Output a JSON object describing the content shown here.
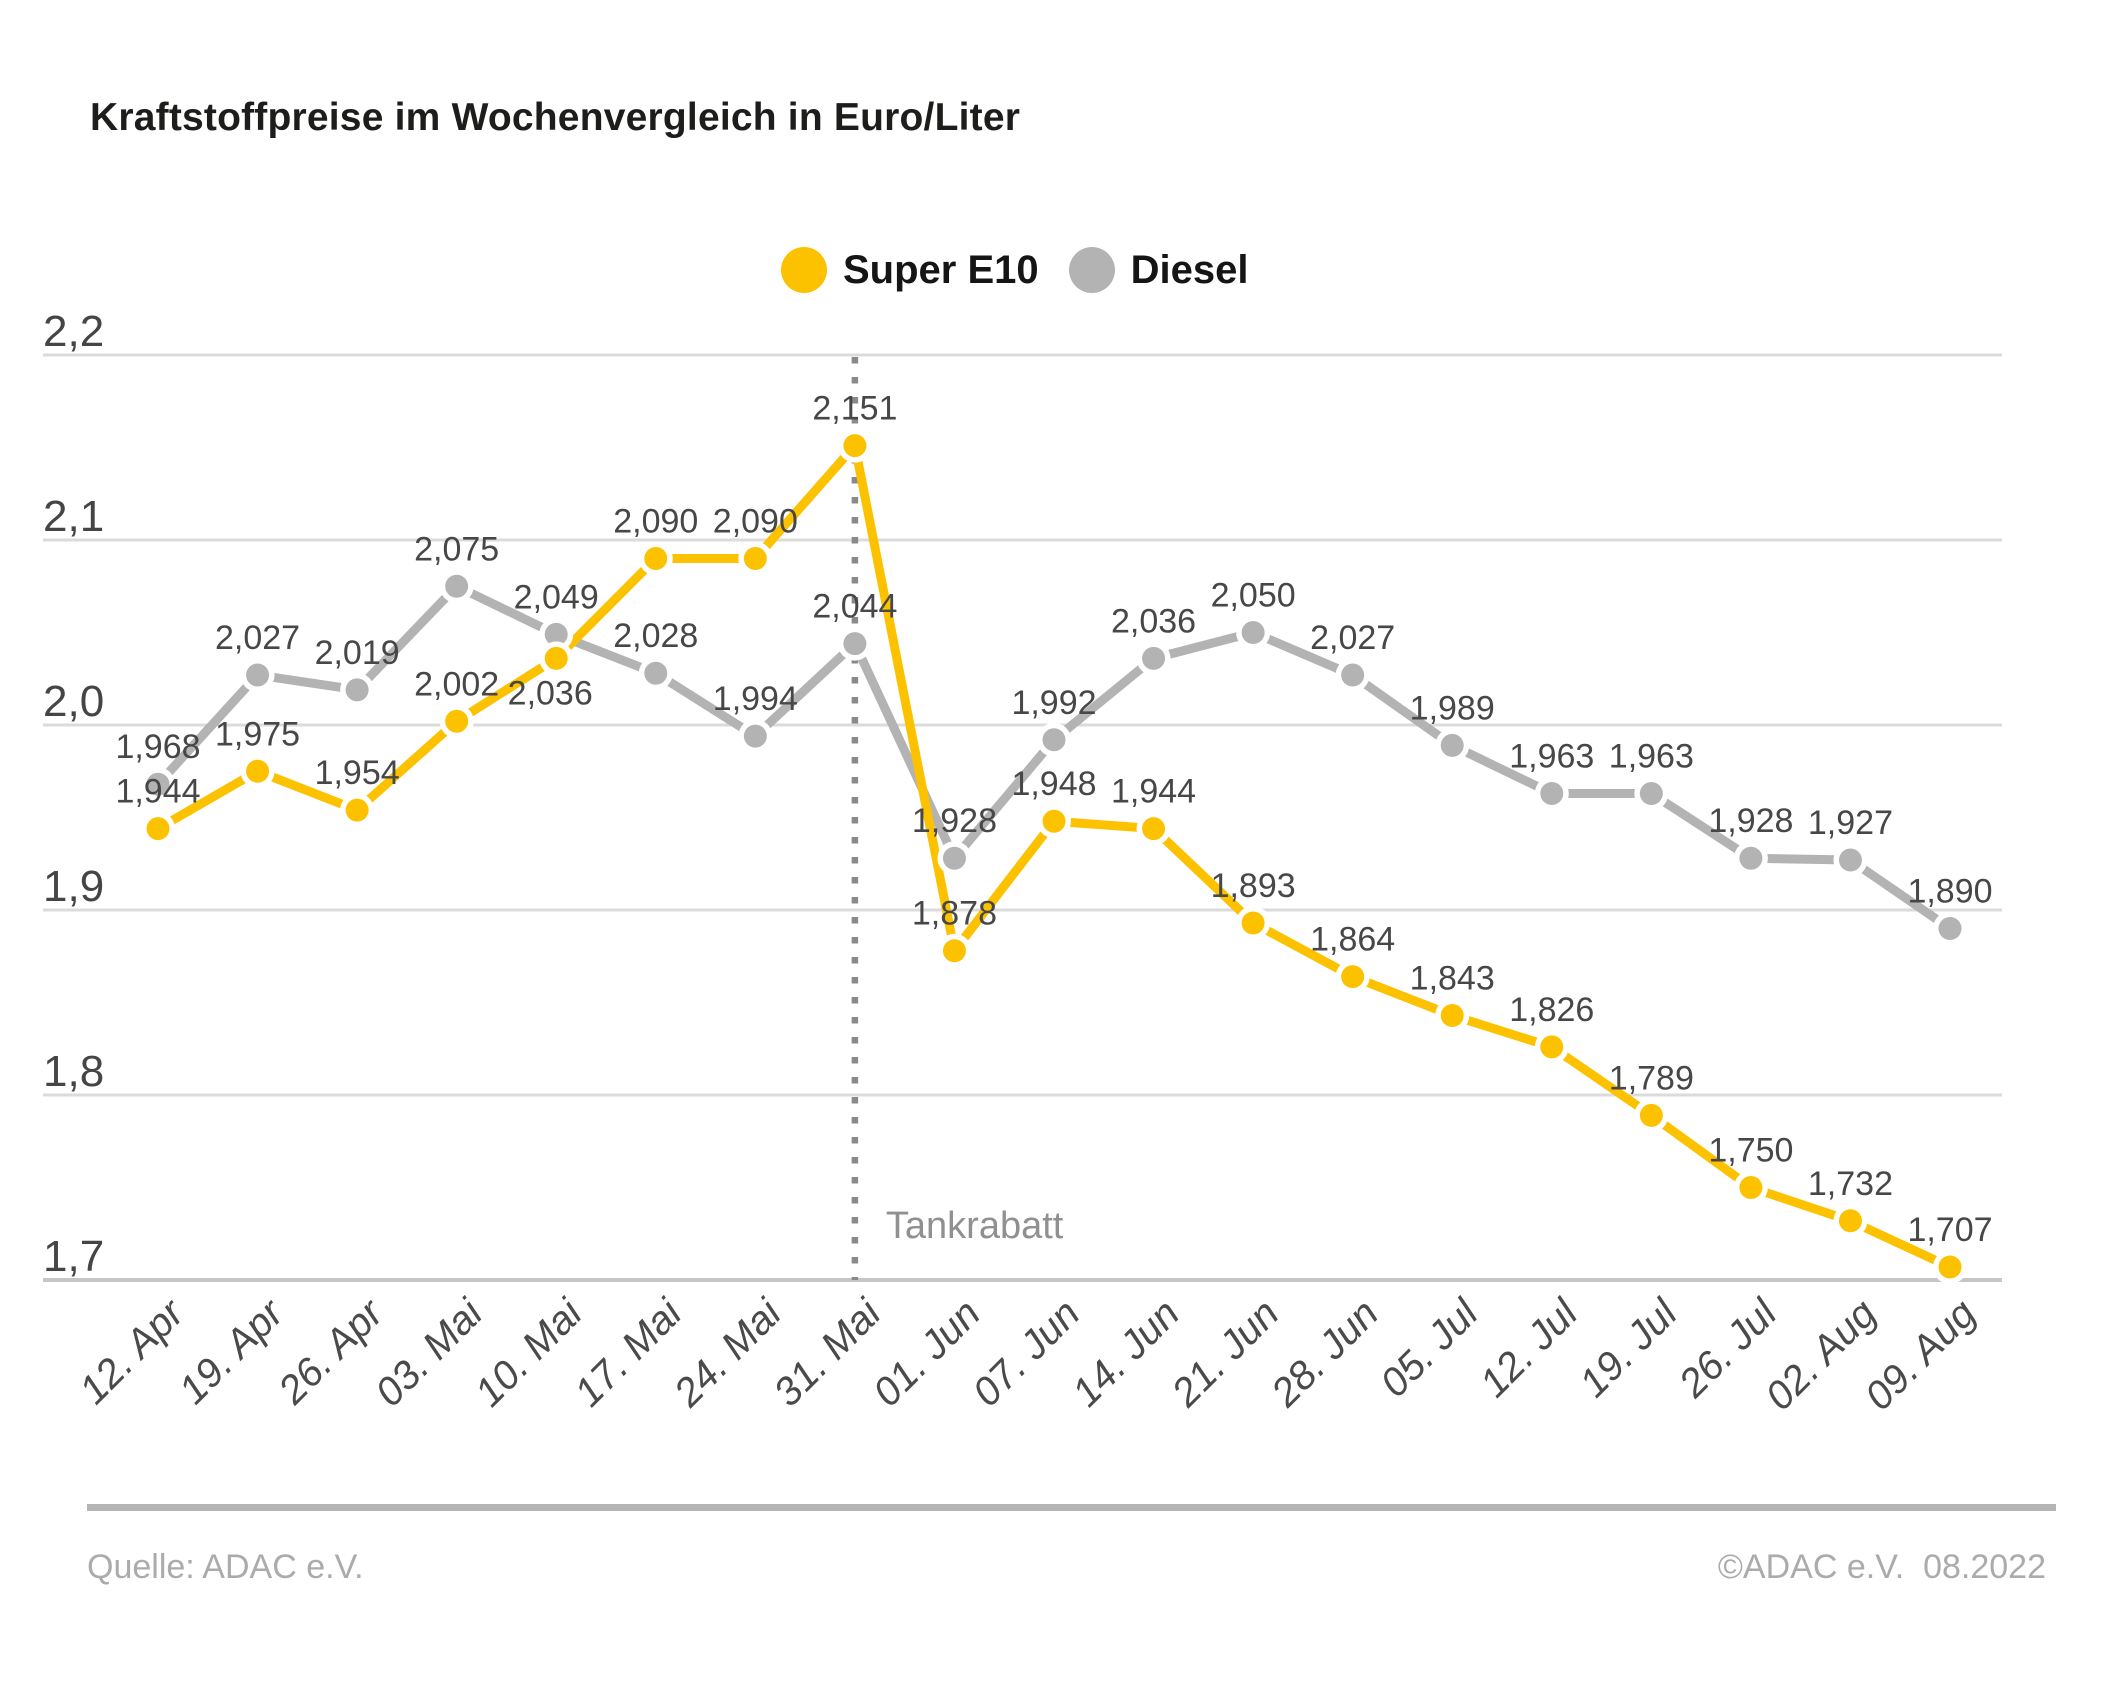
{
  "title": "Kraftstoffpreise im Wochenvergleich in Euro/Liter",
  "legend": [
    {
      "label": "Super E10",
      "color": "#FCC200"
    },
    {
      "label": "Diesel",
      "color": "#B3B3B3"
    }
  ],
  "annotation": {
    "label": "Tankrabatt",
    "category": "31. Mai"
  },
  "footer": {
    "source": "Quelle: ADAC e.V.",
    "copyright": "©ADAC e.V.  08.2022"
  },
  "chart_data": {
    "type": "line",
    "title": "Kraftstoffpreise im Wochenvergleich in Euro/Liter",
    "categories": [
      "12. Apr",
      "19. Apr",
      "26. Apr",
      "03. Mai",
      "10. Mai",
      "17. Mai",
      "24. Mai",
      "31. Mai",
      "01. Jun",
      "07. Jun",
      "14. Jun",
      "21. Jun",
      "28. Jun",
      "05. Jul",
      "12. Jul",
      "19. Jul",
      "26. Jul",
      "02. Aug",
      "09. Aug"
    ],
    "series": [
      {
        "name": "Diesel",
        "color": "#B3B3B3",
        "values": [
          1.968,
          2.027,
          2.019,
          2.075,
          2.049,
          2.028,
          1.994,
          2.044,
          1.928,
          1.992,
          2.036,
          2.05,
          2.027,
          1.989,
          1.963,
          1.963,
          1.928,
          1.927,
          1.89
        ]
      },
      {
        "name": "Super E10",
        "color": "#FCC200",
        "values": [
          1.944,
          1.975,
          1.954,
          2.002,
          2.036,
          2.09,
          2.09,
          2.151,
          1.878,
          1.948,
          1.944,
          1.893,
          1.864,
          1.843,
          1.826,
          1.789,
          1.75,
          1.732,
          1.707
        ]
      }
    ],
    "ylim": [
      1.7,
      2.2
    ],
    "yticks": [
      {
        "value": 2.2,
        "label": "2,2"
      },
      {
        "value": 2.1,
        "label": "2,1"
      },
      {
        "value": 2.0,
        "label": "2,0"
      },
      {
        "value": 1.9,
        "label": "1,9"
      },
      {
        "value": 1.8,
        "label": "1,8"
      },
      {
        "value": 1.7,
        "label": "1,7"
      }
    ],
    "grid": true,
    "legend_position": "top-center",
    "value_label_format": "comma-3-decimals",
    "annotation_line_category_index": 7,
    "colors": {
      "gridline": "#DBDBDB",
      "baseline": "#C6C6C6",
      "dotted_line": "#8A8A8A",
      "value_label": "#474747",
      "axis_label": "#454545",
      "date_label": "#4A4A4A",
      "annotation_label": "#909090"
    }
  }
}
